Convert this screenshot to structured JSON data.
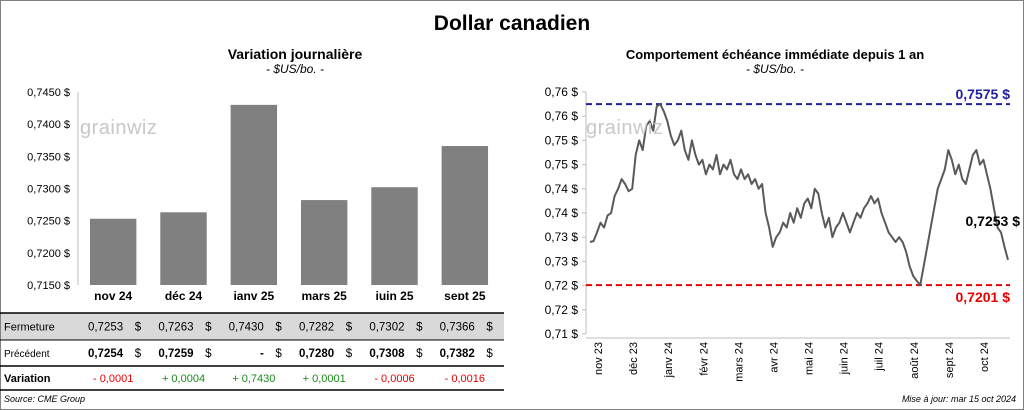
{
  "title": "Dollar canadien",
  "left": {
    "title": "Variation  journalière",
    "subtitle": "- $US/bo. -"
  },
  "right": {
    "title": "Comportement échéance immédiate depuis 1 an",
    "subtitle": "- $US/bo. -"
  },
  "watermark": "grainwiz",
  "table": {
    "rows": [
      {
        "label": "Fermeture",
        "values": [
          "0,7253",
          "0,7263",
          "0,7430",
          "0,7282",
          "0,7302",
          "0,7366"
        ],
        "currency": "$"
      },
      {
        "label": "Précédent",
        "values": [
          "0,7254",
          "0,7259",
          "-",
          "0,7280",
          "0,7308",
          "0,7382"
        ],
        "currency": "$"
      },
      {
        "label": "Variation",
        "values": [
          "- 0,0001",
          "+ 0,0004",
          "+ 0,7430",
          "+ 0,0001",
          "- 0,0006",
          "- 0,0016"
        ]
      }
    ],
    "variation_colors": [
      "#e60000",
      "#1a8a1a",
      "#1a8a1a",
      "#1a8a1a",
      "#e60000",
      "#e60000"
    ]
  },
  "footer": {
    "source": "Source: CME Group",
    "updated": "Mise à jour: mar 15 oct 2024"
  },
  "chart_data": [
    {
      "type": "bar",
      "categories": [
        "nov 24",
        "déc 24",
        "janv 25",
        "mars 25",
        "juin 25",
        "sept 25"
      ],
      "values": [
        0.7253,
        0.7263,
        0.743,
        0.7282,
        0.7302,
        0.7366
      ],
      "title": "Variation  journalière",
      "subtitle": "- $US/bo. -",
      "ylim": [
        0.715,
        0.745
      ],
      "yticks": [
        "0,7150 $",
        "0,7200 $",
        "0,7250 $",
        "0,7300 $",
        "0,7350 $",
        "0,7400 $",
        "0,7450 $"
      ],
      "bar_color": "#808080",
      "grid": false
    },
    {
      "type": "line",
      "title": "Comportement échéance immédiate depuis 1 an",
      "subtitle": "- $US/bo. -",
      "x_labels": [
        "nov 23",
        "déc 23",
        "janv 24",
        "févr 24",
        "mars 24",
        "avr 24",
        "mai 24",
        "juin 24",
        "juil 24",
        "août 24",
        "sept 24",
        "oct 24"
      ],
      "ylim": [
        0.71,
        0.76
      ],
      "yticks": [
        "0,71 $",
        "0,72 $",
        "0,72 $",
        "0,73 $",
        "0,73 $",
        "0,74 $",
        "0,74 $",
        "0,75 $",
        "0,75 $",
        "0,76 $",
        "0,76 $"
      ],
      "line_color": "#595959",
      "high": {
        "value": 0.7575,
        "label": "0,7575 $",
        "color": "#1f1fa0"
      },
      "low": {
        "value": 0.7201,
        "label": "0,7201 $",
        "color": "#e60000"
      },
      "last": {
        "value": 0.7253,
        "label": "0,7253 $"
      },
      "series": [
        {
          "values": [
            0.729,
            0.7292,
            0.731,
            0.733,
            0.732,
            0.7345,
            0.735,
            0.7385,
            0.74,
            0.742,
            0.741,
            0.7395,
            0.74,
            0.747,
            0.75,
            0.748,
            0.753,
            0.754,
            0.752,
            0.757,
            0.7575,
            0.756,
            0.754,
            0.751,
            0.749,
            0.75,
            0.752,
            0.748,
            0.746,
            0.75,
            0.747,
            0.745,
            0.746,
            0.743,
            0.745,
            0.744,
            0.747,
            0.743,
            0.745,
            0.744,
            0.746,
            0.743,
            0.742,
            0.744,
            0.742,
            0.743,
            0.741,
            0.742,
            0.74,
            0.741,
            0.735,
            0.732,
            0.728,
            0.73,
            0.731,
            0.733,
            0.732,
            0.735,
            0.733,
            0.736,
            0.734,
            0.737,
            0.738,
            0.736,
            0.74,
            0.739,
            0.735,
            0.732,
            0.734,
            0.73,
            0.732,
            0.733,
            0.735,
            0.733,
            0.731,
            0.733,
            0.735,
            0.734,
            0.736,
            0.737,
            0.7385,
            0.737,
            0.738,
            0.735,
            0.733,
            0.731,
            0.73,
            0.729,
            0.73,
            0.729,
            0.727,
            0.724,
            0.722,
            0.721,
            0.7201,
            0.724,
            0.728,
            0.732,
            0.736,
            0.74,
            0.742,
            0.744,
            0.748,
            0.746,
            0.743,
            0.745,
            0.742,
            0.741,
            0.744,
            0.747,
            0.748,
            0.745,
            0.746,
            0.743,
            0.74,
            0.736,
            0.732,
            0.731,
            0.728,
            0.7253
          ]
        }
      ]
    }
  ]
}
